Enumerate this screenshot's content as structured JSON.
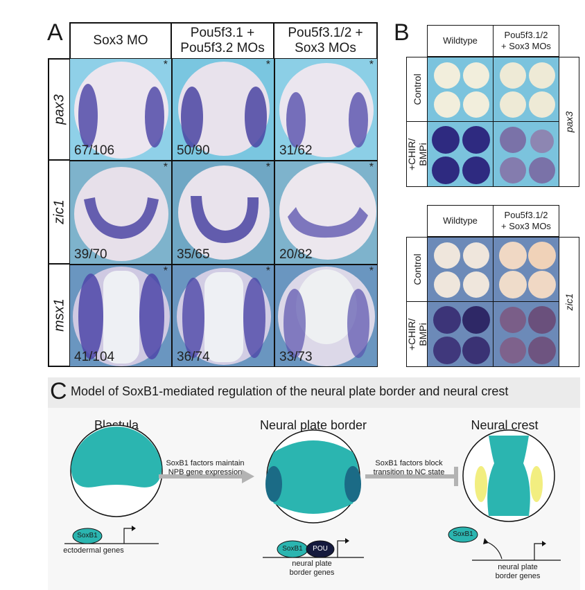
{
  "panel_a": {
    "letter": "A",
    "columns": [
      "Sox3 MO",
      "Pou5f3.1 +\nPou5f3.2 MOs",
      "Pou5f3.1/2 +\nSox3 MOs"
    ],
    "rows": [
      {
        "gene": "pax3",
        "counts": [
          "67/106",
          "50/90",
          "31/62"
        ]
      },
      {
        "gene": "zic1",
        "counts": [
          "39/70",
          "35/65",
          "20/82"
        ]
      },
      {
        "gene": "msx1",
        "counts": [
          "41/104",
          "36/74",
          "33/73"
        ]
      }
    ],
    "star": "*"
  },
  "panel_b": {
    "letter": "B",
    "col_wildtype": "Wildtype",
    "col_mo": "Pou5f3.1/2\n+ Sox3 MOs",
    "row_control": "Control",
    "row_treat": "+CHIR/\nBMPi",
    "gene_top": "pax3",
    "gene_bottom": "zic1"
  },
  "panel_c": {
    "letter": "C",
    "title": "Model of SoxB1-mediated regulation of the neural plate border and neural crest",
    "stage1": "Blastula",
    "stage2": "Neural plate border",
    "stage3": "Neural crest",
    "arrow1": "SoxB1 factors maintain\nNPB gene expression",
    "arrow2": "SoxB1 factors block\ntransition to NC state",
    "soxb1": "SoxB1",
    "pou": "POU",
    "genes1": "ectodermal genes",
    "genes2": "neural plate\nborder genes",
    "genes3": "neural plate\nborder genes"
  },
  "colors": {
    "teal": "#2bb5b0",
    "dark_teal": "#1b6b86",
    "navy": "#151a3d",
    "yellow": "#f2ee80",
    "stain": "#3d3a9a",
    "bg_blue": "#7cc2dc",
    "bg_grey": "#e6e6e6"
  }
}
